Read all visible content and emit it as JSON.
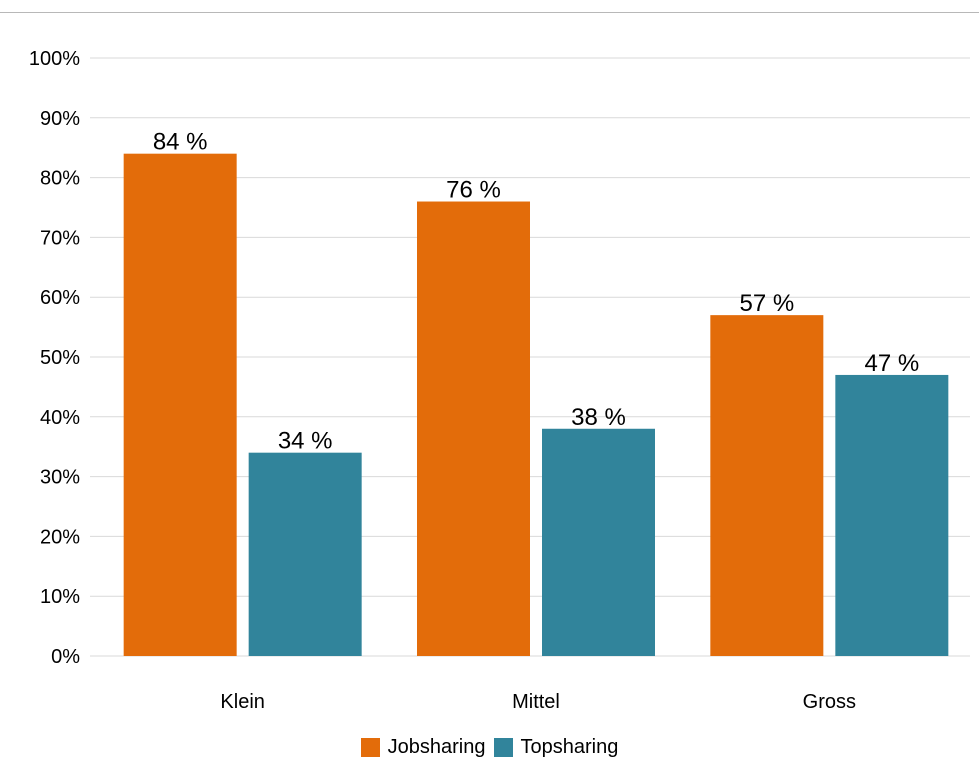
{
  "chart_data": {
    "type": "bar",
    "categories": [
      "Klein",
      "Mittel",
      "Gross"
    ],
    "series": [
      {
        "name": "Jobsharing",
        "values": [
          84,
          76,
          57
        ],
        "labels": [
          "84 %",
          "76 %",
          "57 %"
        ],
        "color": "#e36c0a"
      },
      {
        "name": "Topsharing",
        "values": [
          34,
          38,
          47
        ],
        "labels": [
          "34 %",
          "38 %",
          "47 %"
        ],
        "color": "#31849b"
      }
    ],
    "ylim": [
      0,
      100
    ],
    "yticks": [
      "0%",
      "10%",
      "20%",
      "30%",
      "40%",
      "50%",
      "60%",
      "70%",
      "80%",
      "90%",
      "100%"
    ],
    "grid": true,
    "legend_position": "bottom",
    "title": "",
    "xlabel": "",
    "ylabel": ""
  }
}
